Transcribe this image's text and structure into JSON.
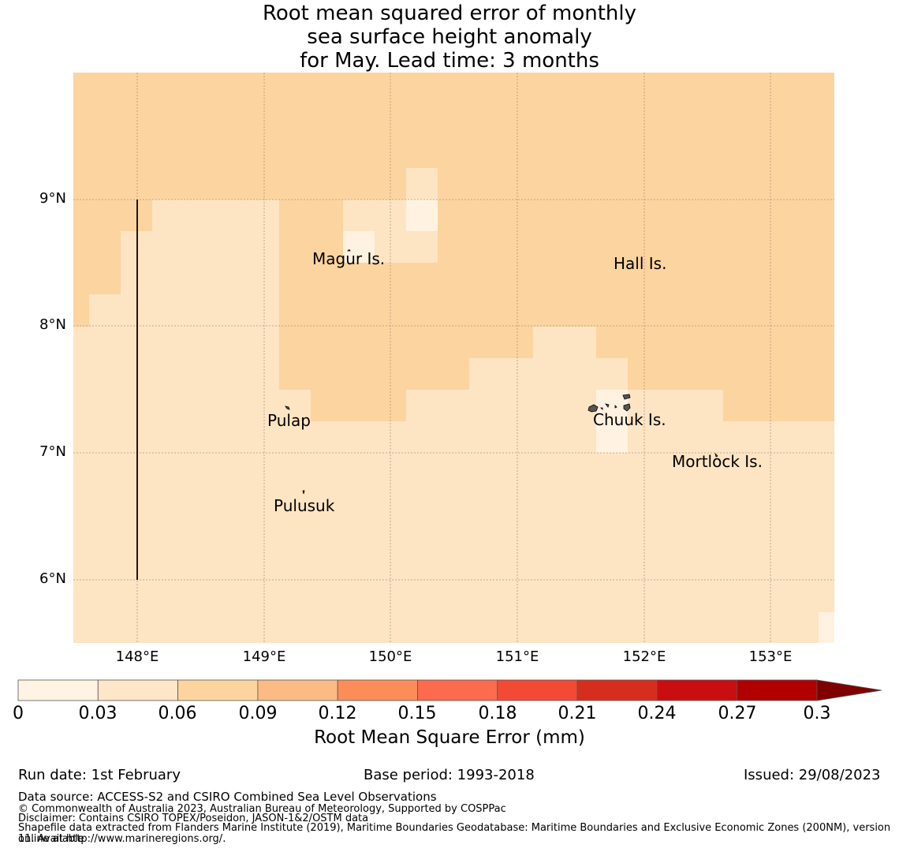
{
  "title": {
    "line1": "Root mean squared error of monthly",
    "line2": "sea surface height anomaly",
    "line3": "for May. Lead time: 3 months"
  },
  "map": {
    "lat_ticks": [
      "9°N",
      "8°N",
      "7°N",
      "6°N"
    ],
    "lon_ticks": [
      "148°E",
      "149°E",
      "150°E",
      "151°E",
      "152°E",
      "153°E"
    ],
    "lat_range": [
      5.5,
      10.0
    ],
    "lon_range": [
      147.5,
      153.5
    ],
    "places": [
      {
        "name": "Magur Is.",
        "lon": 149.6,
        "lat": 8.52
      },
      {
        "name": "Hall Is.",
        "lon": 151.98,
        "lat": 8.47
      },
      {
        "name": "Pulap",
        "lon": 149.2,
        "lat": 7.26
      },
      {
        "name": "Chuuk Is.",
        "lon": 151.9,
        "lat": 7.27
      },
      {
        "name": "Mortlock Is.",
        "lon": 152.58,
        "lat": 6.93
      },
      {
        "name": "Pulusuk",
        "lon": 149.33,
        "lat": 6.59
      }
    ],
    "colors": {
      "level_2": "#fde4c3",
      "level_3": "#fcd49f",
      "level_1": "#fff2e0"
    }
  },
  "colorbar": {
    "ticks": [
      "0",
      "0.03",
      "0.06",
      "0.09",
      "0.12",
      "0.15",
      "0.18",
      "0.21",
      "0.24",
      "0.27",
      "0.3"
    ],
    "colors": [
      "#fff3e2",
      "#fee6c9",
      "#fdd49e",
      "#fcbb84",
      "#fc8d59",
      "#fc6b4d",
      "#f34a36",
      "#d62e1e",
      "#c90e12",
      "#b00000",
      "#7f0000"
    ],
    "label": "Root Mean Square Error (mm)"
  },
  "footer": {
    "run_date": "Run date: 1st February",
    "base_period": "Base period: 1993-2018",
    "issued": "Issued: 29/08/2023",
    "data_source": "Data source: ACCESS-S2 and CSIRO Combined Sea Level Observations",
    "copyright": "© Commonwealth of Australia 2023, Australian Bureau of Meteorology, Supported by COSPPac",
    "disclaimer": "Disclaimer: Contains CSIRO TOPEX/Poseidon, JASON-1&2/OSTM data",
    "shapefile_1": "Shapefile data extracted from Flanders Marine Institute (2019), Maritime Boundaries Geodatabase: Maritime Boundaries and Exclusive Economic Zones (200NM), version 11. Available",
    "shapefile_2": "online at http://www.marineregions.org/."
  }
}
